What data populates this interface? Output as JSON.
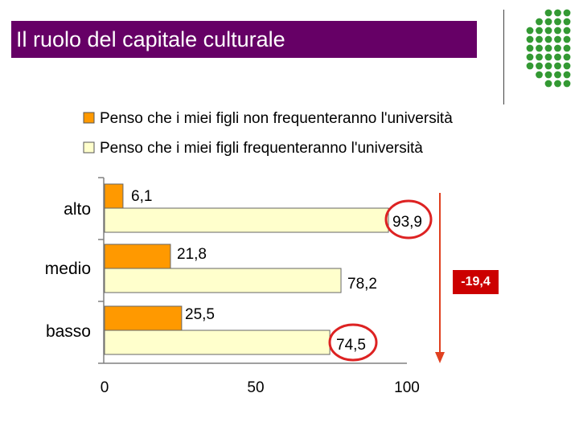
{
  "slide": {
    "title": "Il ruolo del capitale culturale",
    "difference_label": "-19,4"
  },
  "colors": {
    "title_bg": "#660066",
    "dots": "#339933",
    "series_orange": "#ff9900",
    "series_cream": "#ffffcc",
    "highlight_red": "#dd2222",
    "arrow": "#e04020"
  },
  "chart_data": {
    "type": "bar",
    "orientation": "horizontal",
    "categories": [
      "alto",
      "medio",
      "basso"
    ],
    "series": [
      {
        "name": "Penso che i miei figli non frequenteranno l'università",
        "values": [
          6.1,
          21.8,
          25.5
        ],
        "labels": [
          "6,1",
          "21,8",
          "25,5"
        ]
      },
      {
        "name": "Penso che i miei figli frequenteranno l'università",
        "values": [
          93.9,
          78.2,
          74.5
        ],
        "labels": [
          "93,9",
          "78,2",
          "74,5"
        ]
      }
    ],
    "xlim": [
      0,
      100
    ],
    "xticks": [
      "0",
      "50",
      "100"
    ],
    "legend_position": "top",
    "grid": false
  }
}
